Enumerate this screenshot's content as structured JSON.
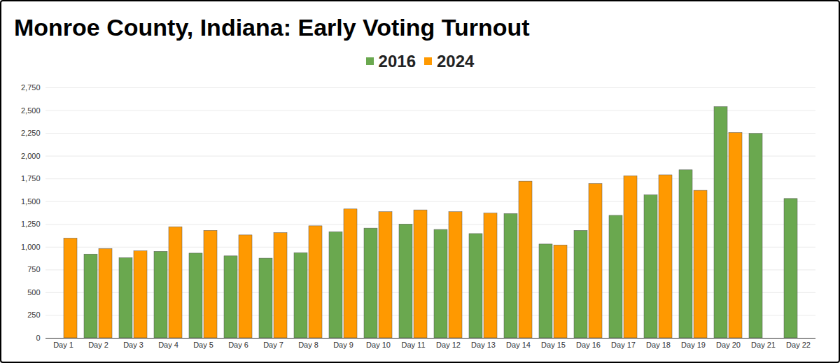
{
  "chart_data": {
    "type": "bar",
    "title": "Monroe County, Indiana: Early Voting Turnout",
    "categories": [
      "Day 1",
      "Day 2",
      "Day 3",
      "Day 4",
      "Day 5",
      "Day 6",
      "Day 7",
      "Day 8",
      "Day 9",
      "Day 10",
      "Day 11",
      "Day 12",
      "Day 13",
      "Day 14",
      "Day 15",
      "Day 16",
      "Day 17",
      "Day 18",
      "Day 19",
      "Day 20",
      "Day 21",
      "Day 22"
    ],
    "series": [
      {
        "name": "2016",
        "color": "#6aa84f",
        "values": [
          null,
          920,
          880,
          950,
          930,
          900,
          875,
          935,
          1165,
          1205,
          1250,
          1190,
          1145,
          1365,
          1030,
          1180,
          1345,
          1570,
          1845,
          2540,
          2245,
          1530
        ]
      },
      {
        "name": "2024",
        "color": "#ff9900",
        "values": [
          1095,
          980,
          955,
          1220,
          1180,
          1130,
          1155,
          1230,
          1415,
          1385,
          1405,
          1385,
          1370,
          1720,
          1020,
          1695,
          1780,
          1790,
          1620,
          2255,
          null,
          null
        ]
      }
    ],
    "ylim": [
      0,
      2750
    ],
    "yticks": [
      0,
      250,
      500,
      750,
      {
        "value": 1000,
        "label": "1,000"
      },
      {
        "value": 1250,
        "label": "1,250"
      },
      {
        "value": 1500,
        "label": "1,500"
      },
      {
        "value": 1750,
        "label": "1,750"
      },
      {
        "value": 2000,
        "label": "2,000"
      },
      {
        "value": 2250,
        "label": "2,250"
      },
      {
        "value": 2500,
        "label": "2,500"
      },
      {
        "value": 2750,
        "label": "2,750"
      }
    ],
    "grid": true,
    "legend": "top"
  }
}
